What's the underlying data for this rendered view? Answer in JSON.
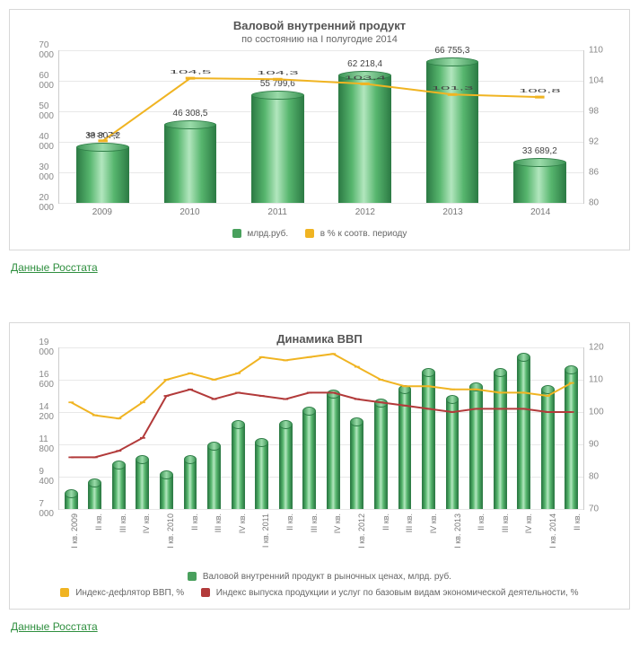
{
  "colors": {
    "bar": "#49a05d",
    "bar_stroke": "#2e7d46",
    "line1": "#f0b422",
    "line2": "#b23a3a",
    "grid": "#e8e8e8",
    "axis_text": "#888888",
    "panel_border": "#d8d8d8",
    "link": "#2f8f3f"
  },
  "chart1": {
    "type": "combo-bar-line",
    "title": "Валовой внутренний продукт",
    "subtitle": "по состоянию на I полугодие 2014",
    "categories": [
      "2009",
      "2010",
      "2011",
      "2012",
      "2013",
      "2014"
    ],
    "bars": {
      "label": "млрд.руб.",
      "values": [
        38807.2,
        46308.5,
        55799.6,
        62218.4,
        66755.3,
        33689.2
      ],
      "value_labels": [
        "38 807,2",
        "46 308,5",
        "55 799,6",
        "62 218,4",
        "66 755,3",
        "33 689,2"
      ]
    },
    "line": {
      "label": "в % к соотв. периоду",
      "values": [
        92.2,
        104.5,
        104.3,
        103.4,
        101.3,
        100.8
      ],
      "value_labels": [
        "92,2",
        "104,5",
        "104,3",
        "103,4",
        "101,3",
        "100,8"
      ]
    },
    "y_left": {
      "min": 20000,
      "max": 70000,
      "step": 10000,
      "labels": [
        "20 000",
        "30 000",
        "40 000",
        "50 000",
        "60 000",
        "70 000"
      ]
    },
    "y_right": {
      "min": 80,
      "max": 110,
      "step": 6,
      "labels": [
        "80",
        "86",
        "92",
        "98",
        "104",
        "110"
      ]
    }
  },
  "chart2": {
    "type": "combo-bar-2line",
    "title": "Динамика ВВП",
    "categories": [
      "I кв. 2009",
      "II кв.",
      "III кв.",
      "IV кв.",
      "I кв. 2010",
      "II кв.",
      "III кв.",
      "IV кв.",
      "I кв. 2011",
      "II кв.",
      "III кв.",
      "IV кв.",
      "I кв. 2012",
      "II кв.",
      "III кв.",
      "IV кв.",
      "I кв. 2013",
      "II кв.",
      "III кв.",
      "IV кв.",
      "I кв. 2014",
      "II кв."
    ],
    "bars": {
      "label": "Валовой внутренний продукт в рыночных ценах, млрд. руб.",
      "values": [
        8300,
        9100,
        10400,
        10800,
        9700,
        10800,
        11800,
        13400,
        12100,
        13400,
        14400,
        15700,
        13600,
        15000,
        16000,
        17300,
        15300,
        16200,
        17300,
        18400,
        16000,
        17500
      ]
    },
    "line_yellow": {
      "label": "Индекс-дефлятор ВВП, %",
      "values": [
        103,
        99,
        98,
        103,
        110,
        112,
        110,
        112,
        117,
        116,
        117,
        118,
        114,
        110,
        108,
        108,
        107,
        107,
        106,
        106,
        105,
        109
      ]
    },
    "line_red": {
      "label": "Индекс выпуска продукции и услуг по базовым видам экономической деятельности, %",
      "values": [
        86,
        86,
        88,
        92,
        105,
        107,
        104,
        106,
        105,
        104,
        106,
        106,
        104,
        103,
        102,
        101,
        100,
        101,
        101,
        101,
        100,
        100
      ]
    },
    "y_left": {
      "min": 7000,
      "max": 19000,
      "step": 2400,
      "labels": [
        "7 000",
        "9 400",
        "11 800",
        "14 200",
        "16 600",
        "19 000"
      ]
    },
    "y_right": {
      "min": 70,
      "max": 120,
      "step": 10,
      "labels": [
        "70",
        "80",
        "90",
        "100",
        "110",
        "120"
      ]
    }
  },
  "source_link": "Данные Росстата"
}
